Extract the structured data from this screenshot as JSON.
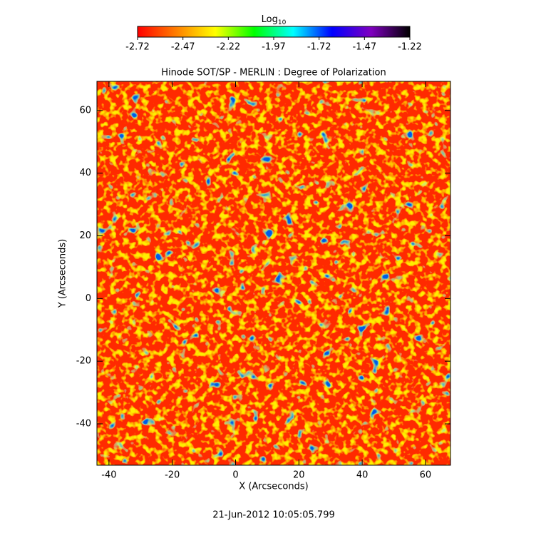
{
  "chart_data": {
    "type": "heatmap",
    "title": "Hinode SOT/SP - MERLIN : Degree of Polarization",
    "x_label": "X (Arcseconds)",
    "y_label": "Y (Arcseconds)",
    "xlim": [
      -43.8,
      67.9
    ],
    "xticks": [
      -40,
      -20,
      0,
      20,
      40,
      60
    ],
    "ylim": [
      -53.2,
      69.3
    ],
    "yticks": [
      -40,
      -20,
      0,
      20,
      40,
      60
    ],
    "colorbar": {
      "label": "Log",
      "label_sub": "10",
      "lim": [
        -2.72,
        -1.22
      ],
      "ticks": [
        -2.72,
        -2.47,
        -2.22,
        -1.97,
        -1.72,
        -1.47,
        -1.22
      ],
      "colors": [
        "#ff0000",
        "#ff7f00",
        "#ffff00",
        "#00ff00",
        "#00ffff",
        "#0000ff",
        "#7f00bf",
        "#000000"
      ]
    },
    "timestamp": "21-Jun-2012 10:05:05.799"
  }
}
